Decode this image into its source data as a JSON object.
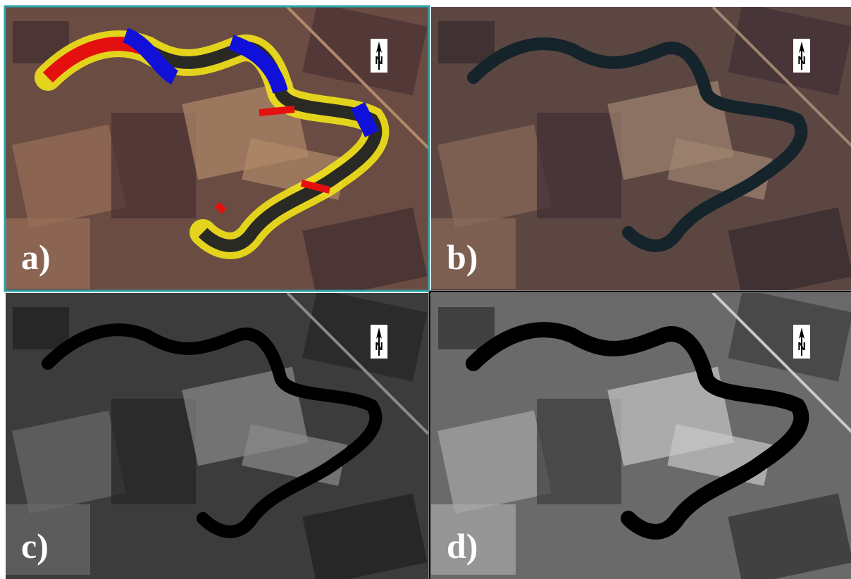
{
  "panels": [
    {
      "label": "a)",
      "north": "N"
    },
    {
      "label": "b)",
      "north": "N"
    },
    {
      "label": "c)",
      "north": "N"
    },
    {
      "label": "d)",
      "north": "N"
    }
  ]
}
